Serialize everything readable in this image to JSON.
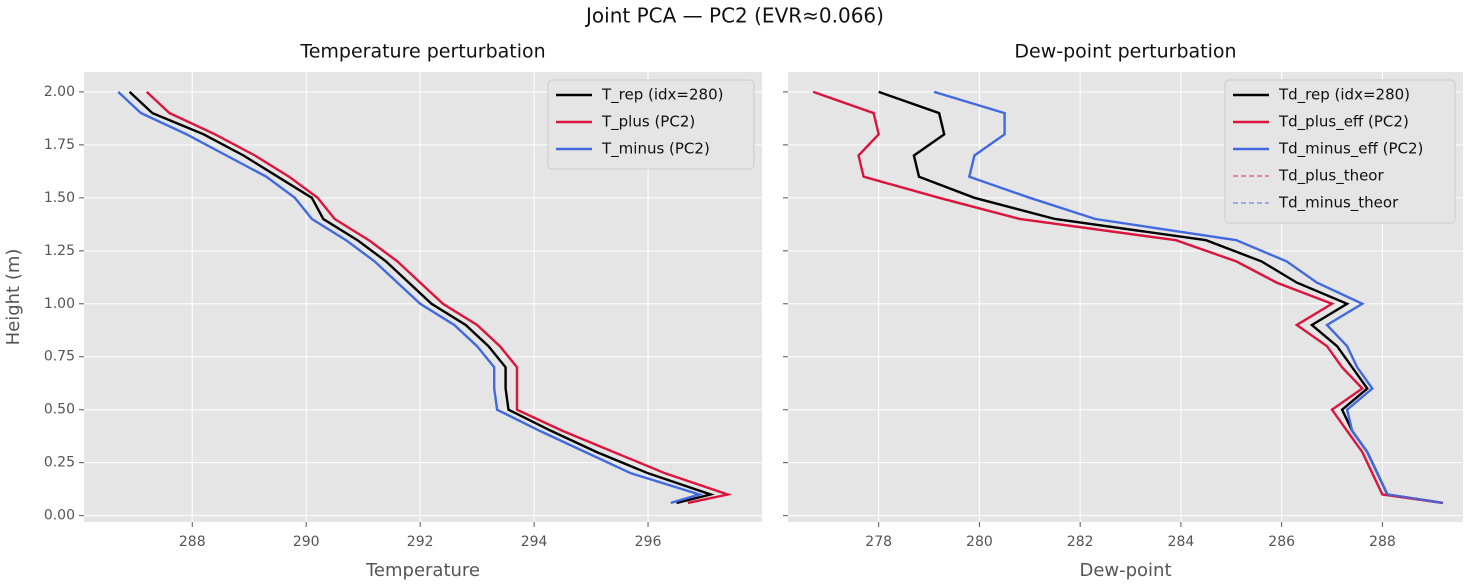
{
  "title": "Joint PCA — PC2   (EVR≈0.066)",
  "chart_data": [
    {
      "type": "line",
      "orientation": "vertical",
      "title": "Temperature perturbation",
      "x_label": "Temperature",
      "y_label": "Height (m)",
      "y": [
        2.0,
        1.9,
        1.8,
        1.7,
        1.6,
        1.5,
        1.4,
        1.3,
        1.2,
        1.1,
        1.0,
        0.9,
        0.8,
        0.7,
        0.6,
        0.5,
        0.4,
        0.3,
        0.2,
        0.1,
        0.06
      ],
      "series": [
        {
          "name": "T_rep (idx=280)",
          "color": "#000000",
          "values": [
            286.9,
            287.3,
            288.2,
            288.9,
            289.5,
            290.1,
            290.3,
            290.9,
            291.4,
            291.8,
            292.2,
            292.8,
            293.2,
            293.5,
            293.5,
            293.55,
            294.3,
            295.1,
            296.0,
            297.1,
            296.5
          ]
        },
        {
          "name": "T_plus (PC2)",
          "color": "#dc143c",
          "values": [
            287.2,
            287.6,
            288.4,
            289.1,
            289.7,
            290.2,
            290.5,
            291.1,
            291.6,
            292.0,
            292.4,
            293.0,
            293.4,
            293.7,
            293.7,
            293.7,
            294.5,
            295.4,
            296.3,
            297.4,
            296.7
          ]
        },
        {
          "name": "T_minus (PC2)",
          "color": "#4169e1",
          "values": [
            286.7,
            287.1,
            287.9,
            288.6,
            289.3,
            289.8,
            290.1,
            290.7,
            291.2,
            291.6,
            292.0,
            292.6,
            293.0,
            293.3,
            293.3,
            293.35,
            294.1,
            294.9,
            295.7,
            296.9,
            296.4
          ]
        }
      ],
      "xlim": [
        286.1,
        298.0
      ],
      "xticks": [
        288,
        290,
        292,
        294,
        296
      ],
      "ylim": [
        -0.03,
        2.094
      ],
      "yticks": [
        {
          "value": 0,
          "label": "0.00"
        },
        {
          "value": 0.25,
          "label": "0.25"
        },
        {
          "value": 0.5,
          "label": "0.50"
        },
        {
          "value": 0.75,
          "label": "0.75"
        },
        {
          "value": 1.0,
          "label": "1.00"
        },
        {
          "value": 1.25,
          "label": "1.25"
        },
        {
          "value": 1.5,
          "label": "1.50"
        },
        {
          "value": 1.75,
          "label": "1.75"
        },
        {
          "value": 2.0,
          "label": "2.00"
        }
      ],
      "grid": true,
      "legend": "upper-right"
    },
    {
      "type": "line",
      "orientation": "vertical",
      "title": "Dew-point perturbation",
      "x_label": "Dew-point",
      "y": [
        2.0,
        1.9,
        1.8,
        1.7,
        1.6,
        1.5,
        1.4,
        1.3,
        1.2,
        1.1,
        1.0,
        0.9,
        0.8,
        0.7,
        0.6,
        0.5,
        0.4,
        0.3,
        0.2,
        0.1,
        0.06
      ],
      "series": [
        {
          "name": "Td_rep (idx=280)",
          "color": "#000000",
          "values": [
            278.0,
            279.2,
            279.3,
            278.7,
            278.8,
            279.9,
            281.5,
            284.5,
            285.6,
            286.3,
            287.3,
            286.6,
            287.1,
            287.4,
            287.7,
            287.2,
            287.4,
            287.7,
            287.9,
            288.1,
            289.2
          ]
        },
        {
          "name": "Td_plus_eff (PC2)",
          "color": "#dc143c",
          "values": [
            276.7,
            277.9,
            278.0,
            277.6,
            277.7,
            279.2,
            280.8,
            283.9,
            285.1,
            285.9,
            287.0,
            286.3,
            286.9,
            287.2,
            287.6,
            287.0,
            287.3,
            287.6,
            287.8,
            288.0,
            289.2
          ]
        },
        {
          "name": "Td_minus_eff (PC2)",
          "color": "#4169e1",
          "values": [
            279.1,
            280.5,
            280.5,
            279.9,
            279.8,
            281.0,
            282.3,
            285.1,
            286.1,
            286.7,
            287.6,
            286.9,
            287.3,
            287.5,
            287.8,
            287.3,
            287.4,
            287.7,
            287.9,
            288.1,
            289.2
          ]
        },
        {
          "name": "Td_plus_theor",
          "color": "#dc143c",
          "dashed": true,
          "values": [
            276.7,
            277.9,
            278.0,
            277.6,
            277.7,
            279.2,
            280.8,
            283.9,
            285.1,
            285.9,
            287.0,
            286.3,
            286.9,
            287.2,
            287.6,
            287.0,
            287.3,
            287.6,
            287.8,
            288.0,
            289.2
          ]
        },
        {
          "name": "Td_minus_theor",
          "color": "#4169e1",
          "dashed": true,
          "values": [
            279.1,
            280.5,
            280.5,
            279.9,
            279.8,
            281.0,
            282.3,
            285.1,
            286.1,
            286.7,
            287.6,
            286.9,
            287.3,
            287.5,
            287.8,
            287.3,
            287.4,
            287.7,
            287.9,
            288.1,
            289.2
          ]
        }
      ],
      "xlim": [
        276.2,
        289.6
      ],
      "xticks": [
        278,
        280,
        282,
        284,
        286,
        288
      ],
      "ylim": [
        -0.03,
        2.094
      ],
      "yticks": [
        0,
        0.25,
        0.5,
        0.75,
        1.0,
        1.25,
        1.5,
        1.75,
        2.0
      ],
      "show_ytick_labels": false,
      "grid": true,
      "legend": "upper-right"
    }
  ]
}
